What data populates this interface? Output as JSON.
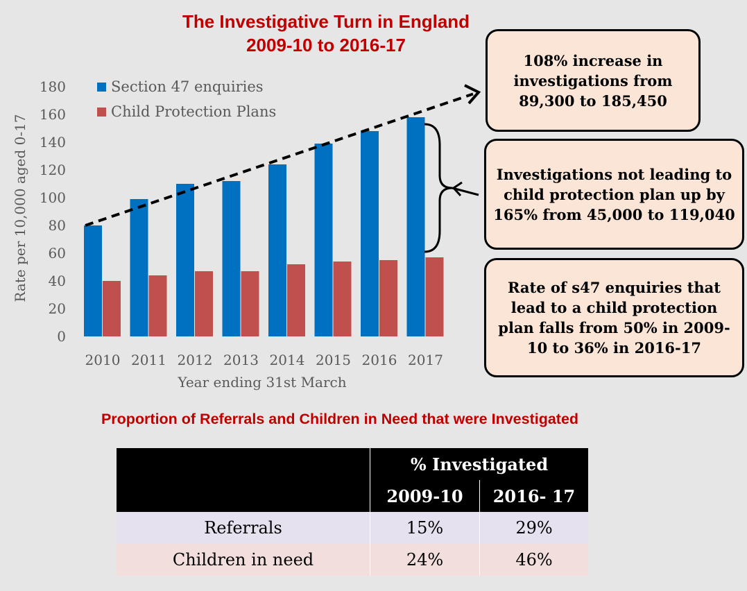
{
  "chart_data": {
    "type": "bar",
    "title_line1": "The Investigative Turn in England",
    "title_line2": "2009-10 to 2016-17",
    "xlabel": "Year ending 31st March",
    "ylabel": "Rate per 10,000 aged 0-17",
    "categories": [
      "2010",
      "2011",
      "2012",
      "2013",
      "2014",
      "2015",
      "2016",
      "2017"
    ],
    "series": [
      {
        "name": "Section 47 enquiries",
        "color": "#0070c0",
        "values": [
          80,
          99,
          110,
          112,
          124,
          139,
          148,
          158
        ]
      },
      {
        "name": "Child Protection Plans",
        "color": "#c0504d",
        "values": [
          40,
          44,
          47,
          47,
          52,
          54,
          55,
          57
        ]
      }
    ],
    "ylim": [
      0,
      180
    ],
    "yticks": [
      0,
      20,
      40,
      60,
      80,
      100,
      120,
      140,
      160,
      180
    ],
    "grid": false,
    "legend": "top-left",
    "trend_arrow": "dashed black arrow from 2010 Section 47 bar to callout"
  },
  "callouts": {
    "increase": "108% increase in investigations from 89,300 to 185,450",
    "not_leading": "Investigations not leading to child protection plan up by 165%  from 45,000 to 119,040",
    "rate": "Rate of s47 enquiries that lead to a child protection plan falls from 50% in 2009-10 to 36% in 2016-17"
  },
  "table": {
    "title": "Proportion of Referrals and Children in Need that were Investigated",
    "group_header": "% Investigated",
    "columns": [
      "2009-10",
      "2016- 17"
    ],
    "rows": [
      {
        "label": "Referrals",
        "values": [
          "15%",
          "29%"
        ]
      },
      {
        "label": "Children in need",
        "values": [
          "24%",
          "46%"
        ]
      }
    ]
  },
  "colors": {
    "accent_red": "#c00000",
    "callout_fill": "#fbe5d6",
    "background": "#e6e6e6"
  }
}
